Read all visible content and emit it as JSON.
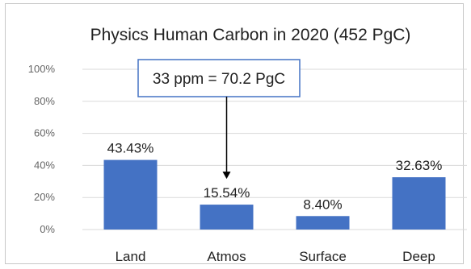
{
  "chart_data": {
    "type": "bar",
    "title": "Physics Human Carbon in 2020  (452 PgC)",
    "categories": [
      "Land",
      "Atmos",
      "Surface",
      "Deep"
    ],
    "values": [
      43.43,
      15.54,
      8.4,
      32.63
    ],
    "data_labels": [
      "43.43%",
      "15.54%",
      "8.40%",
      "32.63%"
    ],
    "ylim": [
      0,
      100
    ],
    "yticks": [
      0,
      20,
      40,
      60,
      80,
      100
    ],
    "ytick_labels": [
      "0%",
      "20%",
      "40%",
      "60%",
      "80%",
      "100%"
    ],
    "grid": true,
    "bar_color": "#4472C4",
    "grid_color": "#d9d9d9",
    "annotation": {
      "text": "33 ppm = 70.2 PgC",
      "points_to": "Atmos",
      "box_border": "#4472C4"
    }
  }
}
